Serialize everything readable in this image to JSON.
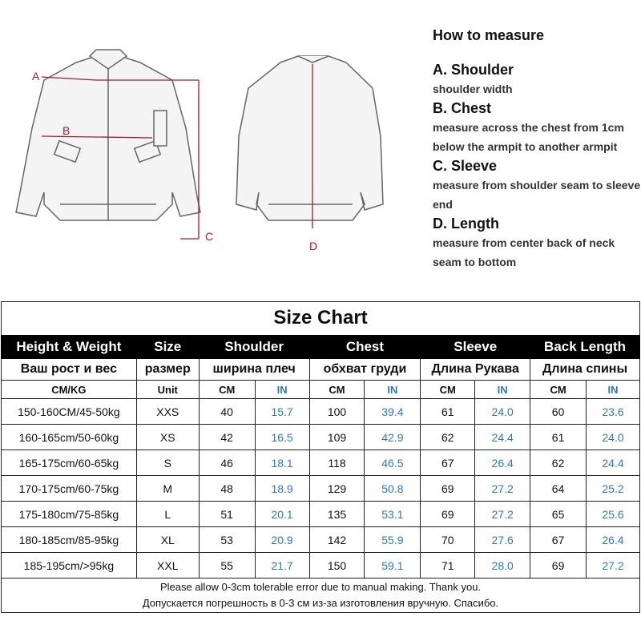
{
  "illustration": {
    "labels": {
      "a": "A",
      "b": "B",
      "c": "C",
      "d": "D"
    },
    "measure_line_color": "#a01c2c"
  },
  "howto": {
    "heading": "How to measure",
    "items": [
      {
        "title": "A. Shoulder",
        "desc": "shoulder width"
      },
      {
        "title": "B. Chest",
        "desc": "measure across the chest from 1cm below the armpit to another armpit"
      },
      {
        "title": "C. Sleeve",
        "desc": "measure from shoulder seam to sleeve end"
      },
      {
        "title": "D. Length",
        "desc": "measure from center back of neck seam to bottom"
      }
    ]
  },
  "table": {
    "title": "Size Chart",
    "headers": [
      "Height & Weight",
      "Size",
      "Shoulder",
      "Chest",
      "Sleeve",
      "Back Length"
    ],
    "headers_ru": [
      "Ваш рост и вес",
      "размер",
      "ширина плеч",
      "обхват груди",
      "Длина Рукава",
      "Длина спины"
    ],
    "units": [
      "CM/KG",
      "Unit",
      "CM",
      "IN",
      "CM",
      "IN",
      "CM",
      "IN",
      "CM",
      "IN"
    ],
    "in_color": "#2a7ab8",
    "rows": [
      [
        "150-160CM/45-50kg",
        "XXS",
        "40",
        "15.7",
        "100",
        "39.4",
        "61",
        "24.0",
        "60",
        "23.6"
      ],
      [
        "160-165cm/50-60kg",
        "XS",
        "42",
        "16.5",
        "109",
        "42.9",
        "62",
        "24.4",
        "61",
        "24.0"
      ],
      [
        "165-175cm/60-65kg",
        "S",
        "46",
        "18.1",
        "118",
        "46.5",
        "67",
        "26.4",
        "62",
        "24.4"
      ],
      [
        "170-175cm/60-75kg",
        "M",
        "48",
        "18.9",
        "129",
        "50.8",
        "69",
        "27.2",
        "64",
        "25.2"
      ],
      [
        "175-180cm/75-85kg",
        "L",
        "51",
        "20.1",
        "135",
        "53.1",
        "69",
        "27.2",
        "65",
        "25.6"
      ],
      [
        "180-185cm/85-95kg",
        "XL",
        "53",
        "20.9",
        "142",
        "55.9",
        "70",
        "27.6",
        "67",
        "26.4"
      ],
      [
        "185-195cm/>95kg",
        "XXL",
        "55",
        "21.7",
        "150",
        "59.1",
        "71",
        "28.0",
        "69",
        "27.2"
      ]
    ],
    "footer_en": "Please allow 0-3cm tolerable error due to manual making. Thank you.",
    "footer_ru": "Допускается погрешность в 0-3 см из-за изготовления вручную. Спасибо."
  }
}
